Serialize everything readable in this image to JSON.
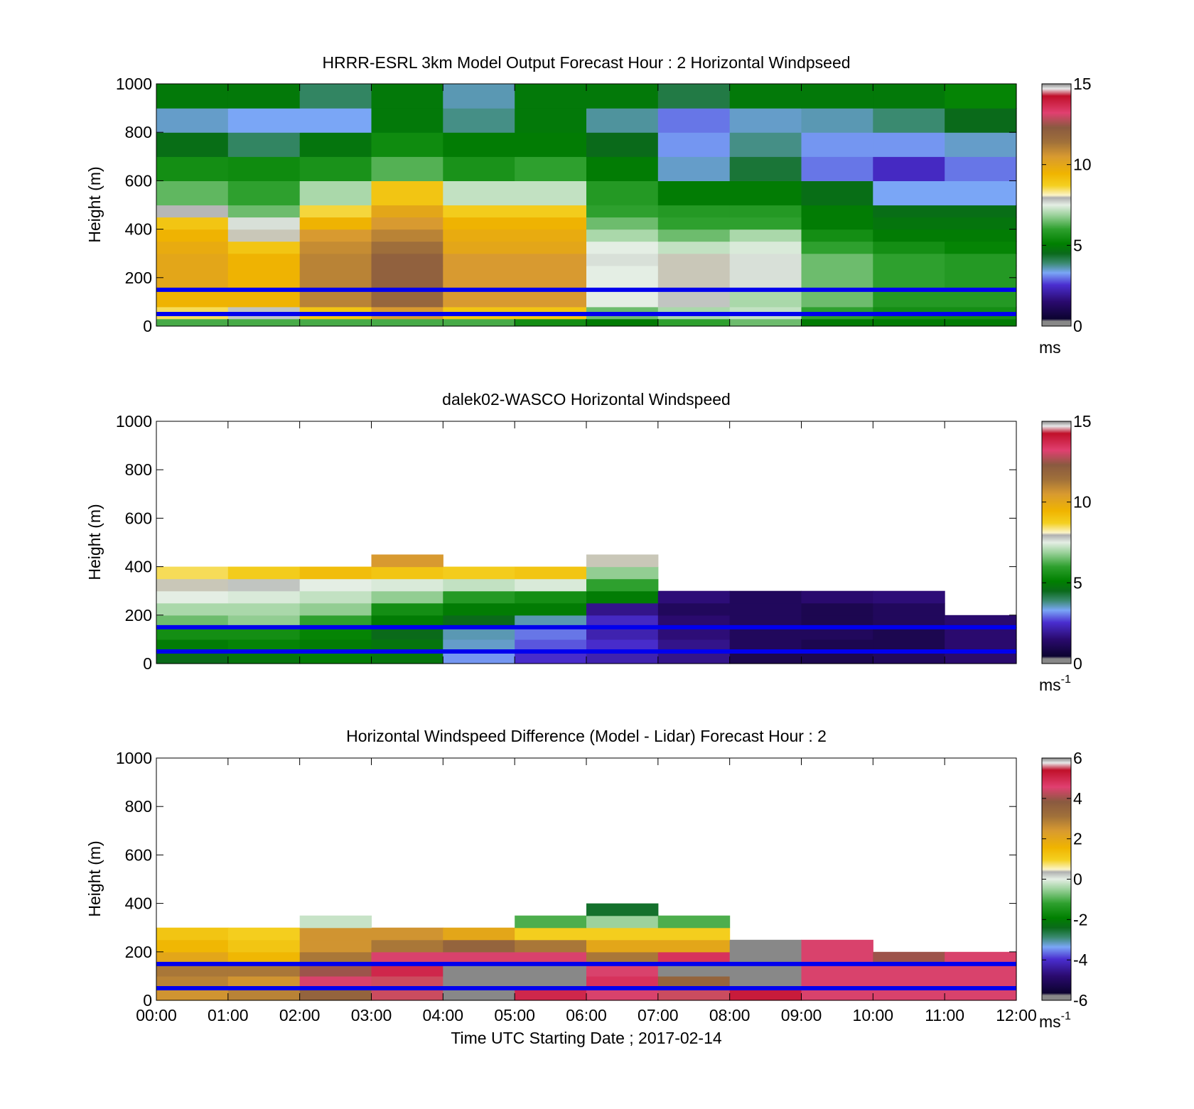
{
  "colormaps": {
    "speed": {
      "range": [
        0,
        15
      ],
      "stops": [
        [
          0.0,
          "#888888"
        ],
        [
          0.02,
          "#888888"
        ],
        [
          0.03,
          "#0c0330"
        ],
        [
          0.1,
          "#2a0a6e"
        ],
        [
          0.17,
          "#4a2ed0"
        ],
        [
          0.22,
          "#7aa6f6"
        ],
        [
          0.26,
          "#3a8a70"
        ],
        [
          0.3,
          "#0a6a1a"
        ],
        [
          0.34,
          "#008000"
        ],
        [
          0.4,
          "#2ea02e"
        ],
        [
          0.46,
          "#9fd39f"
        ],
        [
          0.5,
          "#e4eee4"
        ],
        [
          0.53,
          "#b0b0b0"
        ],
        [
          0.54,
          "#fbf4c8"
        ],
        [
          0.58,
          "#f4d020"
        ],
        [
          0.63,
          "#f0b400"
        ],
        [
          0.7,
          "#d89a30"
        ],
        [
          0.76,
          "#a0703a"
        ],
        [
          0.82,
          "#8a5a40"
        ],
        [
          0.88,
          "#e04070"
        ],
        [
          0.95,
          "#c0102a"
        ],
        [
          0.98,
          "#e8e8e8"
        ],
        [
          1.0,
          "#888888"
        ]
      ]
    },
    "diff": {
      "range": [
        -6,
        6
      ],
      "stops": [
        [
          0.0,
          "#888888"
        ],
        [
          0.02,
          "#888888"
        ],
        [
          0.03,
          "#0c0330"
        ],
        [
          0.1,
          "#2a0a6e"
        ],
        [
          0.17,
          "#4a2ed0"
        ],
        [
          0.22,
          "#7aa6f6"
        ],
        [
          0.26,
          "#3a8a70"
        ],
        [
          0.3,
          "#0a6a1a"
        ],
        [
          0.34,
          "#008000"
        ],
        [
          0.4,
          "#2ea02e"
        ],
        [
          0.46,
          "#9fd39f"
        ],
        [
          0.5,
          "#e4eee4"
        ],
        [
          0.53,
          "#b0b0b0"
        ],
        [
          0.54,
          "#fbf4c8"
        ],
        [
          0.58,
          "#f4d020"
        ],
        [
          0.63,
          "#f0b400"
        ],
        [
          0.7,
          "#d89a30"
        ],
        [
          0.76,
          "#a0703a"
        ],
        [
          0.82,
          "#8a5a40"
        ],
        [
          0.88,
          "#e04070"
        ],
        [
          0.95,
          "#c0102a"
        ],
        [
          0.98,
          "#e8e8e8"
        ],
        [
          1.0,
          "#888888"
        ]
      ]
    }
  },
  "line_color": "#0000ee",
  "xlabel": "Time UTC  Starting Date ; 2017-02-14",
  "chart_data": [
    {
      "type": "heatmap",
      "title": "HRRR-ESRL 3km Model Output   Forecast Hour : 2 Horizontal Windpseed",
      "ylabel": "Height (m)",
      "ylim": [
        0,
        1000
      ],
      "yticks": [
        "0",
        "200",
        "400",
        "600",
        "800",
        "1000"
      ],
      "x_range_hours": [
        0,
        12
      ],
      "colormap": "speed",
      "colorbar_ticks": [
        "0",
        "5",
        "10",
        "15"
      ],
      "colorbar_unit": "ms",
      "colorbar_unit_sup": "",
      "reference_lines_m": [
        50,
        150
      ],
      "x_edges_hours": [
        0,
        1,
        2,
        3,
        4,
        5,
        6,
        7,
        8,
        9,
        10,
        11,
        12
      ],
      "y_edges_m": [
        0,
        30,
        80,
        150,
        200,
        250,
        300,
        350,
        400,
        450,
        500,
        600,
        700,
        800,
        900,
        1000
      ],
      "z": [
        [
          6.2,
          6.2,
          6.2,
          6.2,
          6.2,
          5.5,
          5.0,
          6.0,
          6.5,
          5.0,
          5.0,
          5.0
        ],
        [
          8.5,
          7.8,
          9.0,
          10.5,
          9.0,
          9.0,
          6.5,
          7.0,
          7.2,
          6.0,
          5.5,
          5.5
        ],
        [
          9.5,
          9.5,
          11.0,
          11.8,
          10.5,
          10.5,
          7.5,
          7.8,
          7.0,
          6.5,
          5.8,
          5.8
        ],
        [
          10.0,
          9.5,
          11.0,
          12.0,
          10.5,
          10.5,
          7.5,
          8.0,
          7.6,
          6.5,
          6.0,
          5.8
        ],
        [
          10.0,
          9.5,
          11.0,
          12.0,
          10.5,
          10.5,
          7.5,
          8.0,
          7.6,
          6.5,
          6.0,
          5.8
        ],
        [
          10.0,
          9.5,
          11.0,
          12.0,
          10.5,
          10.5,
          7.6,
          8.0,
          7.6,
          6.5,
          6.0,
          5.8
        ],
        [
          9.8,
          9.0,
          10.8,
          11.5,
          10.0,
          10.0,
          7.5,
          7.2,
          7.4,
          6.0,
          5.5,
          5.2
        ],
        [
          9.5,
          8.0,
          10.5,
          11.0,
          9.8,
          9.8,
          7.0,
          6.5,
          7.0,
          5.5,
          5.0,
          5.0
        ],
        [
          9.0,
          7.6,
          9.5,
          10.5,
          9.5,
          9.5,
          6.5,
          6.0,
          6.0,
          5.0,
          4.8,
          4.8
        ],
        [
          7.9,
          6.5,
          8.6,
          10.0,
          8.8,
          8.8,
          6.0,
          5.8,
          5.8,
          5.0,
          4.6,
          4.6
        ],
        [
          6.4,
          6.0,
          7.0,
          9.0,
          7.2,
          7.2,
          5.8,
          5.0,
          5.0,
          4.6,
          3.3,
          3.3
        ],
        [
          5.5,
          5.4,
          5.6,
          6.3,
          5.6,
          6.0,
          5.0,
          3.5,
          4.3,
          3.0,
          2.4,
          3.0
        ],
        [
          4.6,
          4.0,
          4.8,
          5.4,
          5.0,
          5.0,
          4.5,
          3.2,
          3.8,
          3.2,
          3.2,
          3.5
        ],
        [
          3.5,
          3.3,
          3.3,
          4.9,
          3.8,
          4.9,
          3.7,
          3.0,
          3.5,
          3.6,
          3.9,
          4.5
        ],
        [
          4.9,
          4.9,
          4.0,
          4.9,
          3.6,
          4.9,
          4.9,
          4.2,
          4.9,
          4.9,
          4.9,
          5.2
        ]
      ]
    },
    {
      "type": "heatmap",
      "title": "dalek02-WASCO  Horizontal Windspeed",
      "ylabel": "Height (m)",
      "ylim": [
        0,
        1000
      ],
      "yticks": [
        "0",
        "200",
        "400",
        "600",
        "800",
        "1000"
      ],
      "x_range_hours": [
        0,
        12
      ],
      "colormap": "speed",
      "colorbar_ticks": [
        "0",
        "5",
        "10",
        "15"
      ],
      "colorbar_unit": "ms",
      "colorbar_unit_sup": "-1",
      "reference_lines_m": [
        50,
        150
      ],
      "x_edges_hours": [
        0,
        1,
        2,
        3,
        4,
        5,
        6,
        7,
        8,
        9,
        10,
        11,
        12
      ],
      "y_edges_m": [
        0,
        50,
        100,
        150,
        200,
        250,
        300,
        350,
        400,
        450
      ],
      "z": [
        [
          4.5,
          4.8,
          5.0,
          4.8,
          3.2,
          2.5,
          2.2,
          1.8,
          1.0,
          1.0,
          1.2,
          1.5
        ],
        [
          5.0,
          5.2,
          5.0,
          4.8,
          3.5,
          2.8,
          2.5,
          1.8,
          1.2,
          1.0,
          1.0,
          1.5
        ],
        [
          5.5,
          5.5,
          5.2,
          4.5,
          3.6,
          3.0,
          2.2,
          1.6,
          1.2,
          1.2,
          1.0,
          1.5
        ],
        [
          6.5,
          6.8,
          6.0,
          5.0,
          4.5,
          3.6,
          2.4,
          1.5,
          1.2,
          1.0,
          1.2,
          1.5
        ],
        [
          7.0,
          7.0,
          6.8,
          5.5,
          5.0,
          5.0,
          1.8,
          1.2,
          1.2,
          1.0,
          1.2,
          null
        ],
        [
          7.5,
          7.4,
          7.2,
          6.8,
          5.8,
          5.5,
          5.0,
          1.6,
          1.2,
          1.5,
          1.6,
          null
        ],
        [
          8.0,
          7.8,
          7.5,
          7.4,
          7.2,
          7.4,
          6.0,
          null,
          null,
          null,
          null,
          null
        ],
        [
          8.5,
          8.8,
          9.2,
          9.0,
          8.8,
          9.0,
          6.8,
          null,
          null,
          null,
          null,
          null
        ],
        [
          null,
          null,
          null,
          10.5,
          null,
          null,
          8.0,
          null,
          null,
          null,
          null,
          null
        ]
      ]
    },
    {
      "type": "heatmap",
      "title": "Horizontal Windspeed Difference (Model - Lidar) Forecast Hour : 2",
      "ylabel": "Height (m)",
      "ylim": [
        0,
        1000
      ],
      "yticks": [
        "0",
        "200",
        "400",
        "600",
        "800",
        "1000"
      ],
      "x_range_hours": [
        0,
        12
      ],
      "xticks": [
        "00:00",
        "01:00",
        "02:00",
        "03:00",
        "04:00",
        "05:00",
        "06:00",
        "07:00",
        "08:00",
        "09:00",
        "10:00",
        "11:00",
        "12:00"
      ],
      "colormap": "diff",
      "colorbar_ticks": [
        "-6",
        "-4",
        "-2",
        "0",
        "2",
        "4",
        "6"
      ],
      "colorbar_unit": "ms",
      "colorbar_unit_sup": "-1",
      "reference_lines_m": [
        50,
        150
      ],
      "x_edges_hours": [
        0,
        1,
        2,
        3,
        4,
        5,
        6,
        7,
        8,
        9,
        10,
        11,
        12
      ],
      "y_edges_m": [
        0,
        50,
        100,
        150,
        200,
        250,
        300,
        350,
        400,
        450
      ],
      "z": [
        [
          2.5,
          2.8,
          3.5,
          5.5,
          6.0,
          5.0,
          4.5,
          5.5,
          5.2,
          4.5,
          4.5,
          4.5
        ],
        [
          2.8,
          2.5,
          4.5,
          5.5,
          6.0,
          6.0,
          4.8,
          3.5,
          6.0,
          4.5,
          4.5,
          4.5
        ],
        [
          3.0,
          3.0,
          4.0,
          5.0,
          6.0,
          6.0,
          4.5,
          6.0,
          6.0,
          4.5,
          4.5,
          4.5
        ],
        [
          2.0,
          1.5,
          3.0,
          4.5,
          4.5,
          4.5,
          3.0,
          4.8,
          6.0,
          4.5,
          4.0,
          4.5
        ],
        [
          1.5,
          1.2,
          2.5,
          3.0,
          3.5,
          3.0,
          2.0,
          2.0,
          6.0,
          4.5,
          null,
          null
        ],
        [
          1.2,
          1.0,
          2.5,
          2.5,
          2.0,
          1.0,
          1.0,
          1.0,
          null,
          null,
          null,
          null
        ],
        [
          null,
          null,
          -0.2,
          null,
          null,
          -1.0,
          -0.5,
          -1.0,
          null,
          null,
          null,
          null
        ],
        [
          null,
          null,
          null,
          null,
          null,
          null,
          -2.5,
          null,
          null,
          null,
          null,
          null
        ],
        [
          null,
          null,
          null,
          null,
          null,
          null,
          null,
          null,
          null,
          null,
          null,
          null
        ]
      ]
    }
  ]
}
